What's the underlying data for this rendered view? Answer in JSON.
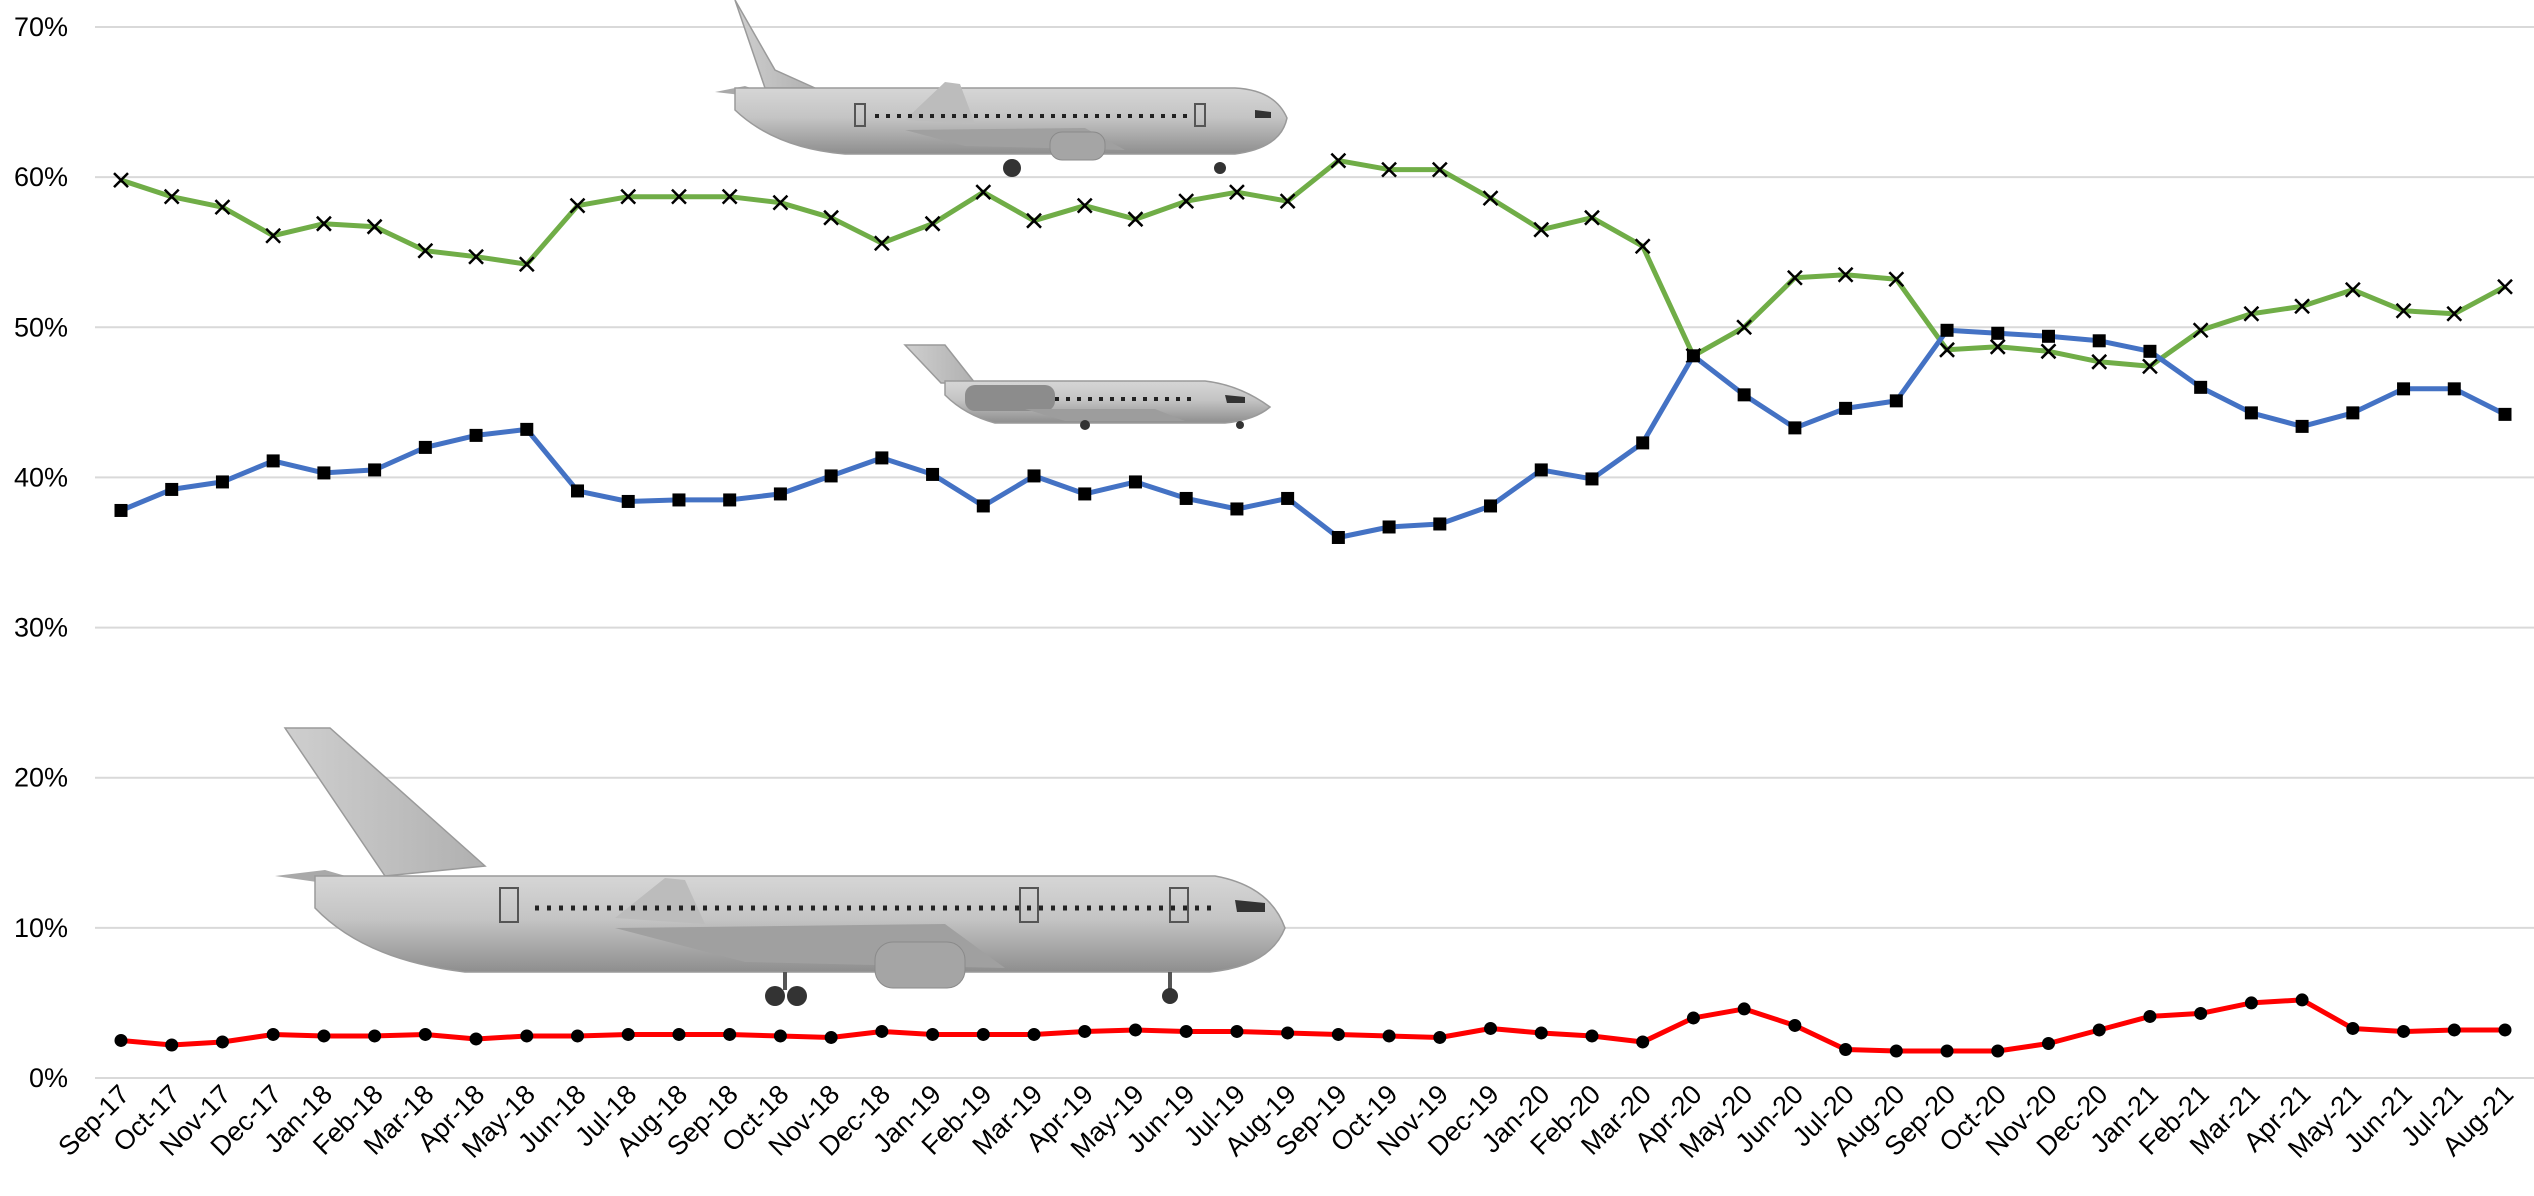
{
  "chart_data": {
    "type": "line",
    "title": "",
    "xlabel": "",
    "ylabel": "",
    "ylim": [
      0,
      70
    ],
    "yticks": [
      "0%",
      "10%",
      "20%",
      "30%",
      "40%",
      "50%",
      "60%",
      "70%"
    ],
    "grid": true,
    "legend": "none",
    "categories": [
      "Sep-17",
      "Oct-17",
      "Nov-17",
      "Dec-17",
      "Jan-18",
      "Feb-18",
      "Mar-18",
      "Apr-18",
      "May-18",
      "Jun-18",
      "Jul-18",
      "Aug-18",
      "Sep-18",
      "Oct-18",
      "Nov-18",
      "Dec-18",
      "Jan-19",
      "Feb-19",
      "Mar-19",
      "Apr-19",
      "May-19",
      "Jun-19",
      "Jul-19",
      "Aug-19",
      "Sep-19",
      "Oct-19",
      "Nov-19",
      "Dec-19",
      "Jan-20",
      "Feb-20",
      "Mar-20",
      "Apr-20",
      "May-20",
      "Jun-20",
      "Jul-20",
      "Aug-20",
      "Sep-20",
      "Oct-20",
      "Nov-20",
      "Dec-20",
      "Jan-21",
      "Feb-21",
      "Mar-21",
      "Apr-21",
      "May-21",
      "Jun-21",
      "Jul-21",
      "Aug-21"
    ],
    "series": [
      {
        "color": "#70ad47",
        "marker": "x",
        "values": [
          59.8,
          58.7,
          58.0,
          56.1,
          56.9,
          56.7,
          55.1,
          54.7,
          54.2,
          58.1,
          58.7,
          58.7,
          58.7,
          58.3,
          57.3,
          55.6,
          56.9,
          59.0,
          57.1,
          58.1,
          57.2,
          58.4,
          59.0,
          58.4,
          61.1,
          60.5,
          60.5,
          58.6,
          56.5,
          57.3,
          55.4,
          48.1,
          50.0,
          53.3,
          53.5,
          53.2,
          48.5,
          48.7,
          48.4,
          47.7,
          47.4,
          49.8,
          50.9,
          51.4,
          52.5,
          51.1,
          50.9,
          52.7
        ]
      },
      {
        "color": "#4472c4",
        "marker": "square",
        "values": [
          37.8,
          39.2,
          39.7,
          41.1,
          40.3,
          40.5,
          42.0,
          42.8,
          43.2,
          39.1,
          38.4,
          38.5,
          38.5,
          38.9,
          40.1,
          41.3,
          40.2,
          38.1,
          40.1,
          38.9,
          39.7,
          38.6,
          37.9,
          38.6,
          36.0,
          36.7,
          36.9,
          38.1,
          40.5,
          39.9,
          42.3,
          48.1,
          45.5,
          43.3,
          44.6,
          45.1,
          49.8,
          49.6,
          49.4,
          49.1,
          48.4,
          46.0,
          44.3,
          43.4,
          44.3,
          45.9,
          45.9,
          44.2
        ]
      },
      {
        "color": "#ff0000",
        "marker": "circle",
        "values": [
          2.5,
          2.2,
          2.4,
          2.9,
          2.8,
          2.8,
          2.9,
          2.6,
          2.8,
          2.8,
          2.9,
          2.9,
          2.9,
          2.8,
          2.7,
          3.1,
          2.9,
          2.9,
          2.9,
          3.1,
          3.2,
          3.1,
          3.1,
          3.0,
          2.9,
          2.8,
          2.7,
          3.3,
          3.0,
          2.8,
          2.4,
          4.0,
          4.6,
          3.5,
          1.9,
          1.8,
          1.8,
          1.8,
          2.3,
          3.2,
          4.1,
          4.3,
          5.0,
          5.2,
          3.3,
          3.1,
          3.2,
          3.2
        ]
      }
    ]
  }
}
